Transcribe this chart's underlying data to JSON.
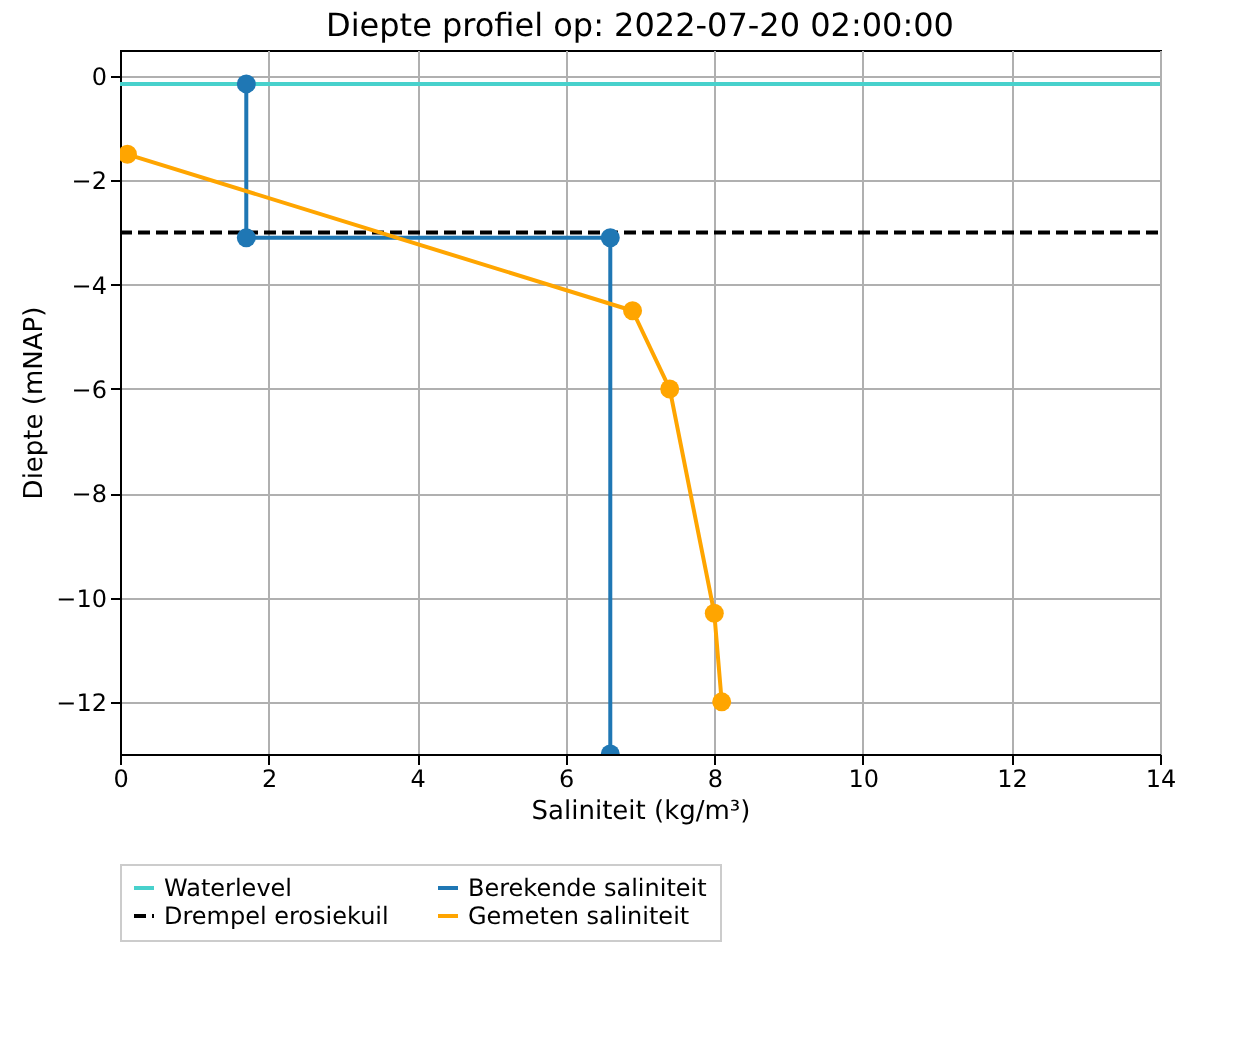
{
  "chart_data": {
    "type": "line",
    "title": "Diepte profiel op: 2022-07-20 02:00:00",
    "xlabel": "Saliniteit (kg/m³)",
    "ylabel": "Diepte (mNAP)",
    "xlim": [
      0,
      14
    ],
    "xticks": [
      0,
      2,
      4,
      6,
      8,
      10,
      12,
      14
    ],
    "ylim": [
      -13,
      0.5
    ],
    "yticks": [
      -12,
      -10,
      -8,
      -6,
      -4,
      -2,
      0
    ],
    "grid": true,
    "legend": "bottom",
    "series": [
      {
        "name": "Waterlevel",
        "color": "#48d1cc",
        "x": [
          0,
          14
        ],
        "values": [
          -0.15,
          -0.15
        ],
        "marker": "none",
        "line_style": "solid"
      },
      {
        "name": "Drempel erosiekuil",
        "color": "#000000",
        "x": [
          0,
          14
        ],
        "values": [
          -3,
          -3
        ],
        "marker": "none",
        "line_style": "dashed"
      },
      {
        "name": "Berekende saliniteit",
        "color": "#1f77b4",
        "x": [
          1.7,
          1.7,
          6.6,
          6.6
        ],
        "values": [
          -0.15,
          -3.1,
          -3.1,
          -13
        ],
        "marker": "circle",
        "line_style": "solid"
      },
      {
        "name": "Gemeten saliniteit",
        "color": "#ffa500",
        "x": [
          0.1,
          6.9,
          7.4,
          8.0,
          8.1
        ],
        "values": [
          -1.5,
          -4.5,
          -6.0,
          -10.3,
          -12.0
        ],
        "marker": "circle",
        "line_style": "solid"
      }
    ]
  }
}
